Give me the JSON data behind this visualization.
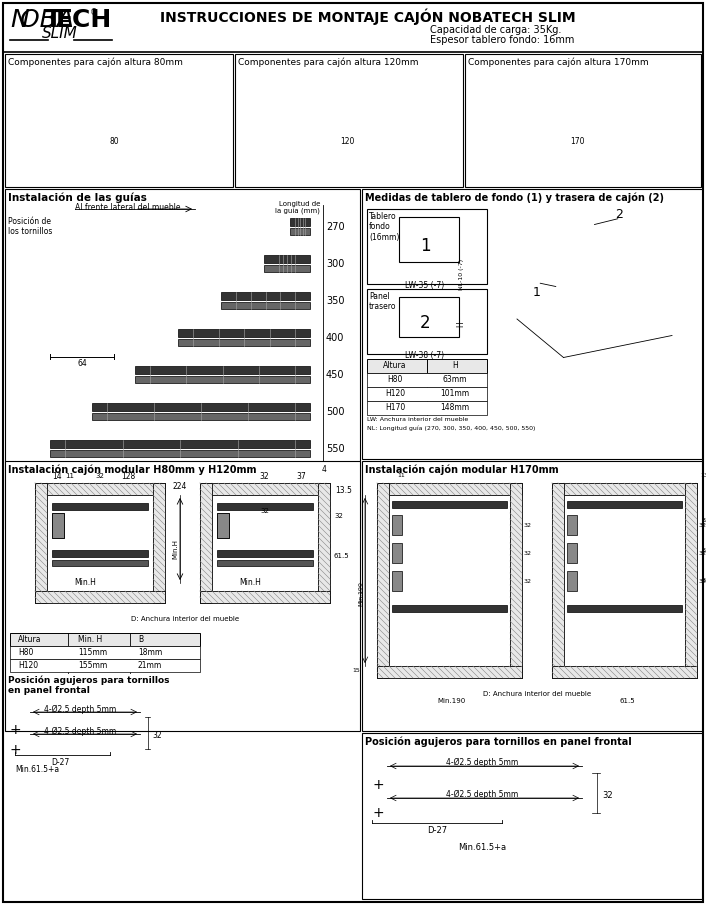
{
  "title_main": "INSTRUCCIONES DE MONTAJE CAJÓN NOBATECH SLIM",
  "subtitle1": "Capacidad de carga: 35Kg.",
  "subtitle2": "Espesor tablero fondo: 16mm",
  "section1_title": "Componentes para cajón altura 80mm",
  "section2_title": "Componentes para cajón altura 120mm",
  "section3_title": "Componentes para cajón altura 170mm",
  "section4_title": "Instalación de las guías",
  "section5_title": "Medidas de tablero de fondo (1) y trasera de cajón (2)",
  "section6_title": "Instalación cajón modular H80mm y H120mm",
  "section7_title": "Instalación cajón modular H170mm",
  "section8_title": "Posición agujeros para tornillos\nen panel frontal",
  "section9_title": "Posición agujeros para tornillos en panel frontal",
  "guide_lengths": [
    "270",
    "300",
    "350",
    "400",
    "450",
    "500",
    "550"
  ],
  "table_headers": [
    "Altura",
    "H"
  ],
  "table_rows": [
    [
      "H80",
      "63mm"
    ],
    [
      "H120",
      "101mm"
    ],
    [
      "H170",
      "148mm"
    ]
  ],
  "table2_headers": [
    "Altura",
    "Min. H",
    "B"
  ],
  "table2_rows": [
    [
      "H80",
      "115mm",
      "18mm"
    ],
    [
      "H120",
      "155mm",
      "21mm"
    ]
  ],
  "note_lw": "LW: Anchura interior del mueble",
  "note_nl": "NL: Longitud guía (270, 300, 350, 400, 450, 500, 550)",
  "label_fondo": "Tablero\nfondo\n(16mm)",
  "label_panel": "Panel\ntrasero",
  "label_lw35": "LW-35 (-7)",
  "label_lw38": "LW-38 (-7)",
  "label_nl10": "NL-10 (-7)",
  "label_tornillos": "Posición de\nlos tornillos",
  "label_alfrente": "Al frente lateral del mueble",
  "label_longguia": "Longitud de\nla guía (mm)",
  "label_D27": "D-27",
  "label_depth": "4-Ø2.5 depth 5mm",
  "label_minH": "Min.61.5+a",
  "label_D_anchura": "D: Anchura interior del mueble",
  "bg_color": "#ffffff"
}
